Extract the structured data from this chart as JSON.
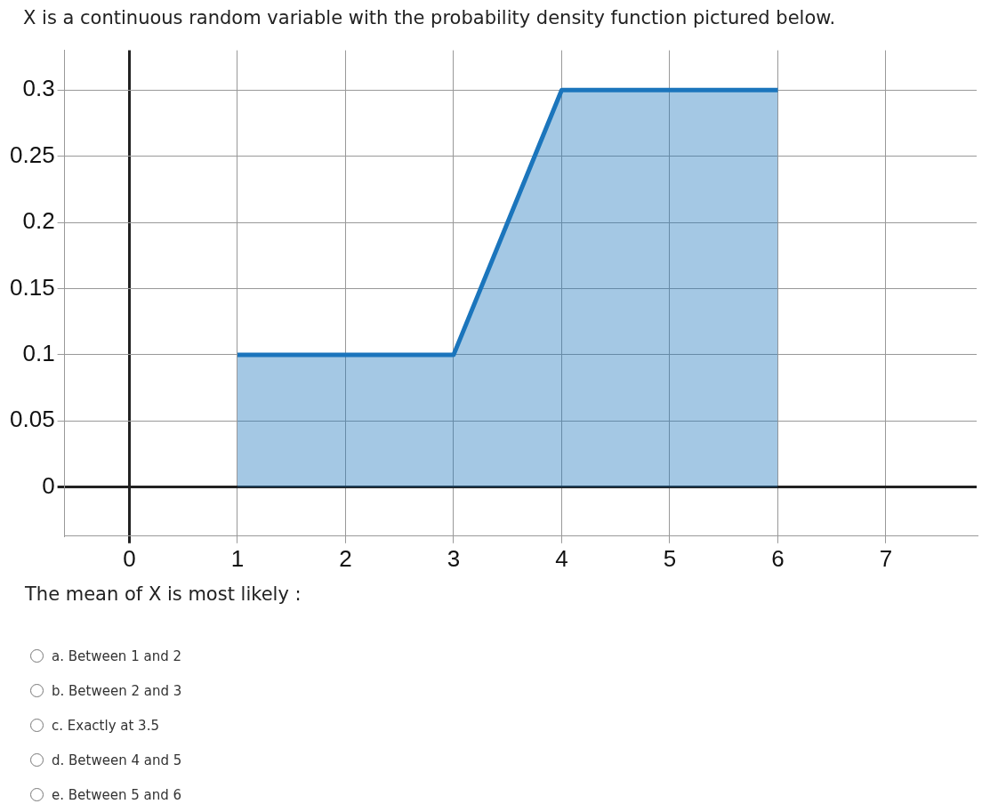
{
  "chart_data": {
    "type": "area",
    "title": "X is a  continuous random variable with the probability density function pictured below.",
    "x": [
      1,
      3,
      4,
      6
    ],
    "series": [
      {
        "color": "#1b75bc",
        "values": [
          0.1,
          0.1,
          0.3,
          0.3
        ]
      }
    ],
    "xlim": [
      -0.6,
      7.84
    ],
    "xticks": [
      0,
      1,
      2,
      3,
      4,
      5,
      6,
      7
    ],
    "ylim": [
      -0.037,
      0.33
    ],
    "yticks": [
      0,
      0.05,
      0.1,
      0.15,
      0.2,
      0.25,
      0.3
    ],
    "grid": true,
    "legend": false,
    "annotations": [
      "The mean of X is most likely :",
      "a. Between 1 and 2",
      "b. Between 2 and 3",
      "c. Exactly at 3.5",
      "d. Between 4 and 5",
      "e. Between 5 and 6"
    ]
  }
}
